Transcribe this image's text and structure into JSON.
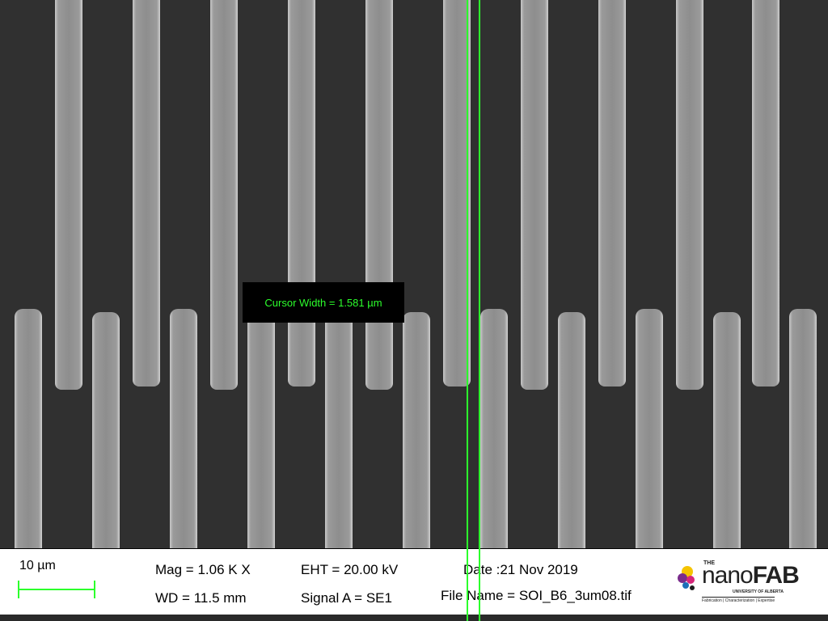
{
  "overlay": {
    "cursor_width_label": "Cursor Width = 1.581 µm"
  },
  "info_bar": {
    "scale_label": "10 µm",
    "mag": "Mag =   1.06 K X",
    "wd": "WD = 11.5 mm",
    "eht": "EHT = 20.00 kV",
    "signal": "Signal A = SE1",
    "date": "Date :21 Nov 2019",
    "file_name": "File Name = SOI_B6_3um08.tif"
  },
  "logo": {
    "the": "THE",
    "word_light": "nano",
    "word_bold": "FAB",
    "subtitle": "UNIVERSITY OF ALBERTA",
    "tagline": "Fabrication | Characterization | Expertise"
  },
  "colors": {
    "cursor_green": "#2cff2c",
    "background": "#303030",
    "finger": "#8e8e8e"
  }
}
